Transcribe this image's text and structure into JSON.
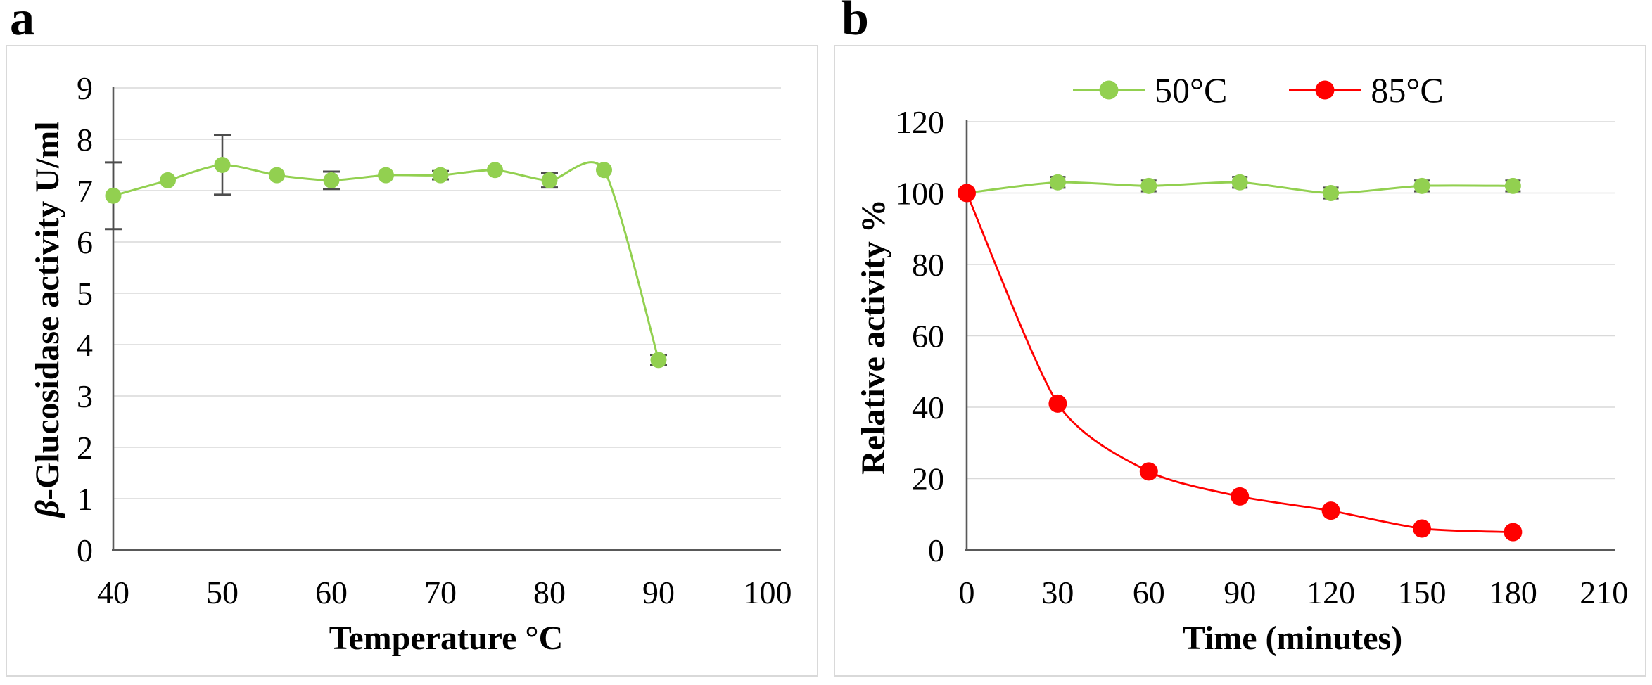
{
  "figure": {
    "panel_a_label": "a",
    "panel_b_label": "b"
  },
  "colors": {
    "green_series": "#92D050",
    "red_series": "#FF0000",
    "gridline": "#D9D9D9",
    "axis": "#595959",
    "error_bar": "#4D4D4D",
    "text": "#000000",
    "panel_border": "#D9D9D9",
    "background": "#FFFFFF"
  },
  "chart_data": [
    {
      "type": "line",
      "panel": "a",
      "title": "",
      "xlabel": "Temperature °C",
      "ylabel": "β-Glucosidase activity U/ml",
      "ylabel_prefix": "β",
      "ylabel_rest": "-Glucosidase activity U/ml",
      "x": [
        40,
        45,
        50,
        55,
        60,
        65,
        70,
        75,
        80,
        85,
        90
      ],
      "series": [
        {
          "name": "beta-glucosidase-activity",
          "color": "#92D050",
          "values": [
            6.9,
            7.2,
            7.5,
            7.3,
            7.2,
            7.3,
            7.3,
            7.4,
            7.2,
            7.4,
            3.7
          ],
          "errors": [
            0.65,
            0,
            0.58,
            0,
            0.17,
            0,
            0.08,
            0,
            0.14,
            0,
            0.1
          ]
        }
      ],
      "xticks": [
        40,
        50,
        60,
        70,
        80,
        90,
        100
      ],
      "yticks": [
        0,
        1,
        2,
        3,
        4,
        5,
        6,
        7,
        8,
        9
      ],
      "xlim": [
        40,
        100
      ],
      "ylim": [
        0,
        9
      ],
      "grid": "horizontal",
      "legend": null
    },
    {
      "type": "line",
      "panel": "b",
      "title": "",
      "xlabel": "Time (minutes)",
      "ylabel": "Relative activity %",
      "x": [
        0,
        30,
        60,
        90,
        120,
        150,
        180
      ],
      "series": [
        {
          "name": "50°C",
          "color": "#92D050",
          "values": [
            100,
            103,
            102,
            103,
            100,
            102,
            102
          ],
          "errors": [
            0,
            1.5,
            1.5,
            1.5,
            1.5,
            1.5,
            1.5
          ]
        },
        {
          "name": "85°C",
          "color": "#FF0000",
          "values": [
            100,
            41,
            22,
            15,
            11,
            6,
            5
          ],
          "errors": [
            0,
            0,
            0,
            0,
            0,
            0,
            0
          ]
        }
      ],
      "xticks": [
        0,
        30,
        60,
        90,
        120,
        150,
        180,
        210
      ],
      "yticks": [
        0,
        20,
        40,
        60,
        80,
        100,
        120
      ],
      "xlim": [
        0,
        210
      ],
      "ylim": [
        0,
        120
      ],
      "grid": "horizontal",
      "legend": {
        "position": "top",
        "entries": [
          "50°C",
          "85°C"
        ]
      }
    }
  ]
}
